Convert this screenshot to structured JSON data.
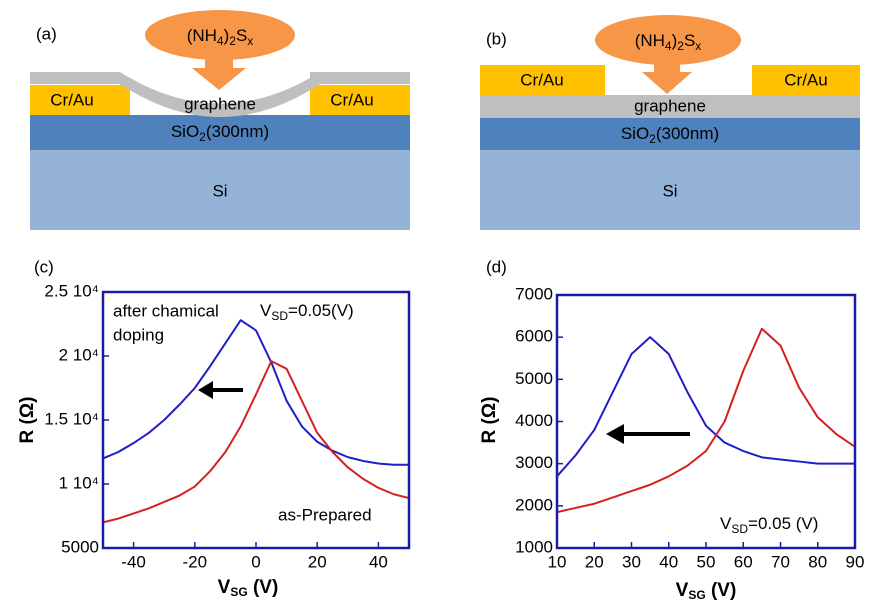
{
  "diagrams": [
    {
      "label": "(a)",
      "reagent": [
        "(NH",
        "4",
        ")",
        "2",
        "S",
        "x"
      ],
      "contact_left": "Cr/Au",
      "contact_right": "Cr/Au",
      "channel": "graphene",
      "oxide": [
        "SiO",
        "2",
        "(300nm)"
      ],
      "substrate": "Si"
    },
    {
      "label": "(b)",
      "reagent": [
        "(NH",
        "4",
        ")",
        "2",
        "S",
        "x"
      ],
      "contact_left": "Cr/Au",
      "contact_right": "Cr/Au",
      "channel": "graphene",
      "oxide": [
        "SiO",
        "2",
        "(300nm)"
      ],
      "substrate": "Si"
    }
  ],
  "chart_data": [
    {
      "type": "line",
      "panel_label": "(c)",
      "xlabel": [
        "V",
        "SG",
        " (V)"
      ],
      "ylabel": "R (Ω)",
      "annotations": {
        "note": [
          "after chamical",
          "doping"
        ],
        "bias": [
          "V",
          "SD",
          "=0.05(V)"
        ],
        "sample": "as-Prepared"
      },
      "x": [
        -50,
        -45,
        -40,
        -35,
        -30,
        -25,
        -20,
        -15,
        -10,
        -5,
        0,
        5,
        10,
        15,
        20,
        25,
        30,
        35,
        40,
        45,
        50
      ],
      "series": [
        {
          "color": "#1f1fc8",
          "values": [
            12000,
            12500,
            13200,
            14000,
            15000,
            16200,
            17500,
            19200,
            21000,
            22800,
            22000,
            19500,
            16500,
            14500,
            13300,
            12600,
            12100,
            11800,
            11600,
            11500,
            11500
          ]
        },
        {
          "color": "#d42020",
          "values": [
            7000,
            7300,
            7700,
            8100,
            8600,
            9100,
            9800,
            11000,
            12500,
            14500,
            17000,
            19600,
            19000,
            16500,
            14000,
            12500,
            11300,
            10400,
            9700,
            9200,
            8900
          ]
        }
      ],
      "xlim": [
        -50,
        50
      ],
      "xticks": [
        -40,
        -20,
        0,
        20,
        40
      ],
      "ylim": [
        5000,
        25000
      ],
      "yticks": [
        5000,
        {
          "value": 10000,
          "label": "1 10⁴"
        },
        {
          "value": 15000,
          "label": "1.5 10⁴"
        },
        {
          "value": 20000,
          "label": "2 10⁴"
        },
        {
          "value": 25000,
          "label": "2.5 10⁴"
        }
      ]
    },
    {
      "type": "line",
      "panel_label": "(d)",
      "xlabel": [
        "V",
        "SG",
        "  (V)"
      ],
      "ylabel": "R (Ω)",
      "annotations": {
        "bias": [
          "V",
          "SD",
          "=0.05 (V)"
        ]
      },
      "x": [
        10,
        15,
        20,
        25,
        30,
        35,
        40,
        45,
        50,
        55,
        60,
        65,
        70,
        75,
        80,
        85,
        90
      ],
      "series": [
        {
          "color": "#1f1fc8",
          "values": [
            2700,
            3200,
            3800,
            4700,
            5600,
            6000,
            5600,
            4700,
            3900,
            3500,
            3300,
            3150,
            3100,
            3050,
            3000,
            3000,
            3000
          ]
        },
        {
          "color": "#d42020",
          "values": [
            1850,
            1950,
            2050,
            2200,
            2350,
            2500,
            2700,
            2950,
            3300,
            4000,
            5200,
            6200,
            5800,
            4800,
            4100,
            3700,
            3400
          ]
        }
      ],
      "xlim": [
        10,
        90
      ],
      "xticks": [
        10,
        20,
        30,
        40,
        50,
        60,
        70,
        80,
        90
      ],
      "ylim": [
        1000,
        7000
      ],
      "yticks": [
        1000,
        2000,
        3000,
        4000,
        5000,
        6000,
        7000
      ]
    }
  ]
}
